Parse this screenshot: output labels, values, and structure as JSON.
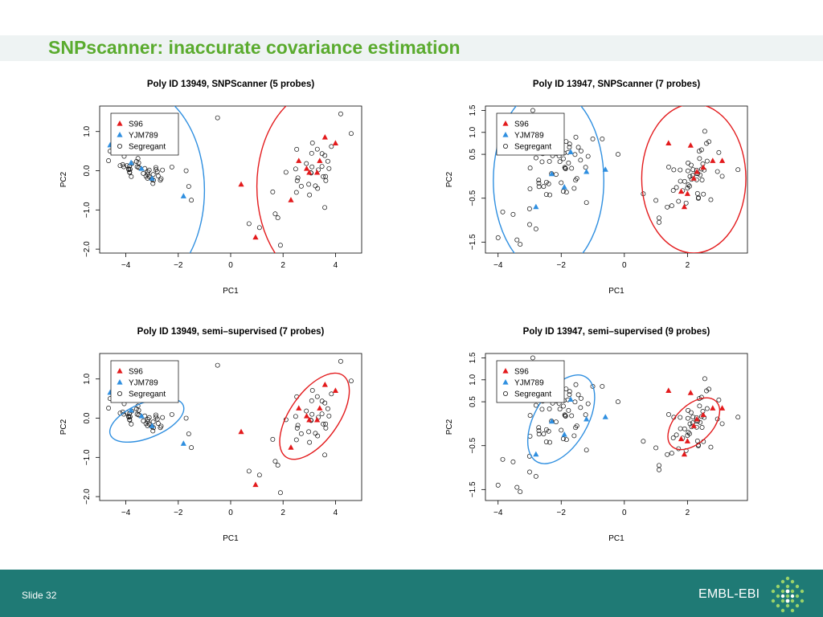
{
  "slide": {
    "title": "SNPscanner: inaccurate covariance estimation",
    "footer_slide": "Slide 32",
    "footer_brand": "EMBL-EBI"
  },
  "colors": {
    "accent_title": "#5aab2e",
    "footer": "#1f7a75",
    "s96": "#e31a1c",
    "yjm789": "#2f8fe0",
    "ellipse_s96": "#e31a1c",
    "ellipse_yjm789": "#2f8fe0"
  },
  "chart_data": [
    {
      "type": "scatter",
      "title": "Poly ID 13949, SNPScanner (5 probes)",
      "xlabel": "PC1",
      "ylabel": "PC2",
      "xlim": [
        -5,
        5
      ],
      "ylim": [
        -2.1,
        1.65
      ],
      "xticks": [
        -4,
        -2,
        0,
        2,
        4
      ],
      "yticks": [
        -2.0,
        -1.0,
        0.0,
        1.0
      ],
      "xtick_labels": [
        "−4",
        "−2",
        "0",
        "2",
        "4"
      ],
      "ytick_labels": [
        "−2.0",
        "−1.0",
        "0.0",
        "1.0"
      ],
      "legend": {
        "position": "top-left",
        "entries": [
          "S96",
          "YJM789",
          "Segregant"
        ]
      },
      "clusters": [
        {
          "series": "YJM789",
          "cx": -3.4,
          "cy": 0.05,
          "n": 40,
          "sx": 0.5,
          "sy": 0.22,
          "rho": -0.6,
          "seed": 11
        },
        {
          "series": "S96",
          "cx": 3.2,
          "cy": 0.1,
          "n": 30,
          "sx": 0.6,
          "sy": 0.5,
          "rho": 0.6,
          "seed": 12
        }
      ],
      "points": [
        {
          "series": "S96",
          "x": 0.4,
          "y": -0.35
        },
        {
          "series": "S96",
          "x": 0.95,
          "y": -1.7
        },
        {
          "series": "S96",
          "x": 2.3,
          "y": -0.75
        },
        {
          "series": "S96",
          "x": 2.6,
          "y": 0.25
        },
        {
          "series": "S96",
          "x": 2.9,
          "y": 0.05
        },
        {
          "series": "S96",
          "x": 3.0,
          "y": -0.05
        },
        {
          "series": "S96",
          "x": 3.4,
          "y": 0.25
        },
        {
          "series": "S96",
          "x": 3.6,
          "y": 0.85
        },
        {
          "series": "S96",
          "x": 3.3,
          "y": -0.05
        },
        {
          "series": "S96",
          "x": 4.0,
          "y": 0.7
        },
        {
          "series": "YJM789",
          "x": -4.6,
          "y": 0.65
        },
        {
          "series": "YJM789",
          "x": -3.8,
          "y": 0.2
        },
        {
          "series": "YJM789",
          "x": -3.4,
          "y": 0.05
        },
        {
          "series": "YJM789",
          "x": -3.0,
          "y": -0.2
        },
        {
          "series": "YJM789",
          "x": -1.8,
          "y": -0.65
        },
        {
          "series": "Segregant",
          "x": -4.6,
          "y": 0.5
        },
        {
          "series": "Segregant",
          "x": -0.5,
          "y": 1.35
        },
        {
          "series": "Segregant",
          "x": 0.7,
          "y": -1.35
        },
        {
          "series": "Segregant",
          "x": 1.1,
          "y": -1.45
        },
        {
          "series": "Segregant",
          "x": 1.9,
          "y": -1.9
        },
        {
          "series": "Segregant",
          "x": 1.7,
          "y": -1.1
        },
        {
          "series": "Segregant",
          "x": 1.8,
          "y": -1.2
        },
        {
          "series": "Segregant",
          "x": 4.2,
          "y": 1.45
        },
        {
          "series": "Segregant",
          "x": 4.6,
          "y": 0.95
        },
        {
          "series": "Segregant",
          "x": -1.5,
          "y": -0.75
        },
        {
          "series": "Segregant",
          "x": -1.6,
          "y": -0.4
        },
        {
          "series": "Segregant",
          "x": -1.7,
          "y": 0.0
        }
      ],
      "ellipses": [
        {
          "series": "YJM789",
          "cx": -3.6,
          "cy": -0.5,
          "rx": 2.6,
          "ry": 2.6,
          "angle": 0
        },
        {
          "series": "S96",
          "cx": 3.6,
          "cy": -0.4,
          "rx": 2.6,
          "ry": 2.5,
          "angle": 0
        }
      ]
    },
    {
      "type": "scatter",
      "title": "Poly ID 13947, SNPScanner (7 probes)",
      "xlabel": "PC1",
      "ylabel": "PC2",
      "xlim": [
        -4.4,
        3.9
      ],
      "ylim": [
        -1.75,
        1.6
      ],
      "xticks": [
        -4,
        -2,
        0,
        2
      ],
      "yticks": [
        -1.5,
        -0.5,
        0.5,
        1.0,
        1.5
      ],
      "xtick_labels": [
        "−4",
        "−2",
        "0",
        "2"
      ],
      "ytick_labels": [
        "−1.5",
        "−0.5",
        "0.5",
        "1.0",
        "1.5"
      ],
      "legend": {
        "position": "top-left",
        "entries": [
          "S96",
          "YJM789",
          "Segregant"
        ]
      },
      "clusters": [
        {
          "series": "YJM789",
          "cx": -2.0,
          "cy": 0.15,
          "n": 50,
          "sx": 0.6,
          "sy": 0.45,
          "rho": 0.6,
          "seed": 21
        },
        {
          "series": "S96",
          "cx": 2.1,
          "cy": -0.05,
          "n": 45,
          "sx": 0.4,
          "sy": 0.4,
          "rho": 0.6,
          "seed": 22
        }
      ],
      "points": [
        {
          "series": "S96",
          "x": 1.4,
          "y": 0.75
        },
        {
          "series": "S96",
          "x": 2.1,
          "y": 0.7
        },
        {
          "series": "S96",
          "x": 1.8,
          "y": -0.35
        },
        {
          "series": "S96",
          "x": 2.0,
          "y": -0.4
        },
        {
          "series": "S96",
          "x": 1.9,
          "y": -0.7
        },
        {
          "series": "S96",
          "x": 2.3,
          "y": 0.1
        },
        {
          "series": "S96",
          "x": 2.8,
          "y": 0.35
        },
        {
          "series": "S96",
          "x": 3.1,
          "y": 0.35
        },
        {
          "series": "S96",
          "x": 2.5,
          "y": 0.2
        },
        {
          "series": "S96",
          "x": 2.2,
          "y": -0.05
        },
        {
          "series": "YJM789",
          "x": -2.8,
          "y": -0.7
        },
        {
          "series": "YJM789",
          "x": -2.3,
          "y": 0.05
        },
        {
          "series": "YJM789",
          "x": -1.9,
          "y": -0.25
        },
        {
          "series": "YJM789",
          "x": -1.7,
          "y": 0.55
        },
        {
          "series": "YJM789",
          "x": -0.6,
          "y": 0.15
        },
        {
          "series": "YJM789",
          "x": -1.2,
          "y": 0.1
        },
        {
          "series": "Segregant",
          "x": -4.0,
          "y": -1.4
        },
        {
          "series": "Segregant",
          "x": -3.3,
          "y": -1.55
        },
        {
          "series": "Segregant",
          "x": -3.4,
          "y": -1.45
        },
        {
          "series": "Segregant",
          "x": -2.9,
          "y": 1.5
        },
        {
          "series": "Segregant",
          "x": -2.8,
          "y": -1.2
        },
        {
          "series": "Segregant",
          "x": -3.0,
          "y": -1.1
        },
        {
          "series": "Segregant",
          "x": -1.0,
          "y": 0.85
        },
        {
          "series": "Segregant",
          "x": -0.7,
          "y": 0.85
        },
        {
          "series": "Segregant",
          "x": -0.2,
          "y": 0.5
        },
        {
          "series": "Segregant",
          "x": 0.6,
          "y": -0.4
        },
        {
          "series": "Segregant",
          "x": 1.1,
          "y": -0.95
        },
        {
          "series": "Segregant",
          "x": 1.1,
          "y": -1.05
        },
        {
          "series": "Segregant",
          "x": 1.0,
          "y": -0.55
        },
        {
          "series": "Segregant",
          "x": 3.6,
          "y": 0.15
        },
        {
          "series": "Segregant",
          "x": 3.1,
          "y": 0.0
        },
        {
          "series": "Segregant",
          "x": -1.2,
          "y": -0.6
        }
      ],
      "ellipses": [
        {
          "series": "YJM789",
          "cx": -2.4,
          "cy": -0.1,
          "rx": 1.75,
          "ry": 2.1,
          "angle": 0
        },
        {
          "series": "S96",
          "cx": 2.2,
          "cy": -0.05,
          "rx": 1.65,
          "ry": 1.7,
          "angle": 0
        }
      ]
    },
    {
      "type": "scatter",
      "title": "Poly ID 13949, semi–supervised (7 probes)",
      "xlabel": "PC1",
      "ylabel": "PC2",
      "xlim": [
        -5,
        5
      ],
      "ylim": [
        -2.1,
        1.65
      ],
      "xticks": [
        -4,
        -2,
        0,
        2,
        4
      ],
      "yticks": [
        -2.0,
        -1.0,
        0.0,
        1.0
      ],
      "xtick_labels": [
        "−4",
        "−2",
        "0",
        "2",
        "4"
      ],
      "ytick_labels": [
        "−2.0",
        "−1.0",
        "0.0",
        "1.0"
      ],
      "legend": {
        "position": "top-left",
        "entries": [
          "S96",
          "YJM789",
          "Segregant"
        ]
      },
      "clusters": [
        {
          "series": "YJM789",
          "cx": -3.4,
          "cy": 0.05,
          "n": 40,
          "sx": 0.5,
          "sy": 0.22,
          "rho": -0.6,
          "seed": 11
        },
        {
          "series": "S96",
          "cx": 3.2,
          "cy": 0.1,
          "n": 30,
          "sx": 0.6,
          "sy": 0.5,
          "rho": 0.6,
          "seed": 12
        }
      ],
      "points": [
        {
          "series": "S96",
          "x": 0.4,
          "y": -0.35
        },
        {
          "series": "S96",
          "x": 0.95,
          "y": -1.7
        },
        {
          "series": "S96",
          "x": 2.3,
          "y": -0.75
        },
        {
          "series": "S96",
          "x": 2.6,
          "y": 0.25
        },
        {
          "series": "S96",
          "x": 2.9,
          "y": 0.05
        },
        {
          "series": "S96",
          "x": 3.0,
          "y": -0.05
        },
        {
          "series": "S96",
          "x": 3.4,
          "y": 0.25
        },
        {
          "series": "S96",
          "x": 3.6,
          "y": 0.85
        },
        {
          "series": "S96",
          "x": 3.3,
          "y": -0.05
        },
        {
          "series": "S96",
          "x": 4.0,
          "y": 0.7
        },
        {
          "series": "YJM789",
          "x": -4.6,
          "y": 0.65
        },
        {
          "series": "YJM789",
          "x": -3.8,
          "y": 0.2
        },
        {
          "series": "YJM789",
          "x": -3.4,
          "y": 0.05
        },
        {
          "series": "YJM789",
          "x": -3.0,
          "y": -0.2
        },
        {
          "series": "YJM789",
          "x": -1.8,
          "y": -0.65
        },
        {
          "series": "Segregant",
          "x": -4.6,
          "y": 0.5
        },
        {
          "series": "Segregant",
          "x": -0.5,
          "y": 1.35
        },
        {
          "series": "Segregant",
          "x": 0.7,
          "y": -1.35
        },
        {
          "series": "Segregant",
          "x": 1.1,
          "y": -1.45
        },
        {
          "series": "Segregant",
          "x": 1.9,
          "y": -1.9
        },
        {
          "series": "Segregant",
          "x": 1.7,
          "y": -1.1
        },
        {
          "series": "Segregant",
          "x": 1.8,
          "y": -1.2
        },
        {
          "series": "Segregant",
          "x": 4.2,
          "y": 1.45
        },
        {
          "series": "Segregant",
          "x": 4.6,
          "y": 0.95
        },
        {
          "series": "Segregant",
          "x": -1.5,
          "y": -0.75
        },
        {
          "series": "Segregant",
          "x": -1.6,
          "y": -0.4
        },
        {
          "series": "Segregant",
          "x": -1.7,
          "y": 0.0
        }
      ],
      "ellipses": [
        {
          "series": "YJM789",
          "cx": -3.2,
          "cy": -0.05,
          "rx": 1.5,
          "ry": 0.45,
          "angle": -22
        },
        {
          "series": "S96",
          "cx": 3.2,
          "cy": 0.05,
          "rx": 1.9,
          "ry": 0.62,
          "angle": -55
        }
      ]
    },
    {
      "type": "scatter",
      "title": "Poly ID 13947, semi–supervised (9 probes)",
      "xlabel": "PC1",
      "ylabel": "PC2",
      "xlim": [
        -4.4,
        3.9
      ],
      "ylim": [
        -1.75,
        1.6
      ],
      "xticks": [
        -4,
        -2,
        0,
        2
      ],
      "yticks": [
        -1.5,
        -0.5,
        0.5,
        1.0,
        1.5
      ],
      "xtick_labels": [
        "−4",
        "−2",
        "0",
        "2"
      ],
      "ytick_labels": [
        "−1.5",
        "−0.5",
        "0.5",
        "1.0",
        "1.5"
      ],
      "legend": {
        "position": "top-left",
        "entries": [
          "S96",
          "YJM789",
          "Segregant"
        ]
      },
      "clusters": [
        {
          "series": "YJM789",
          "cx": -2.0,
          "cy": 0.15,
          "n": 50,
          "sx": 0.6,
          "sy": 0.45,
          "rho": 0.6,
          "seed": 21
        },
        {
          "series": "S96",
          "cx": 2.1,
          "cy": -0.05,
          "n": 45,
          "sx": 0.4,
          "sy": 0.4,
          "rho": 0.6,
          "seed": 22
        }
      ],
      "points": [
        {
          "series": "S96",
          "x": 1.4,
          "y": 0.75
        },
        {
          "series": "S96",
          "x": 2.1,
          "y": 0.7
        },
        {
          "series": "S96",
          "x": 1.8,
          "y": -0.35
        },
        {
          "series": "S96",
          "x": 2.0,
          "y": -0.4
        },
        {
          "series": "S96",
          "x": 1.9,
          "y": -0.7
        },
        {
          "series": "S96",
          "x": 2.3,
          "y": 0.1
        },
        {
          "series": "S96",
          "x": 2.8,
          "y": 0.35
        },
        {
          "series": "S96",
          "x": 3.1,
          "y": 0.35
        },
        {
          "series": "S96",
          "x": 2.5,
          "y": 0.2
        },
        {
          "series": "S96",
          "x": 2.2,
          "y": -0.05
        },
        {
          "series": "YJM789",
          "x": -2.8,
          "y": -0.7
        },
        {
          "series": "YJM789",
          "x": -2.3,
          "y": 0.05
        },
        {
          "series": "YJM789",
          "x": -1.9,
          "y": -0.25
        },
        {
          "series": "YJM789",
          "x": -1.7,
          "y": 0.55
        },
        {
          "series": "YJM789",
          "x": -0.6,
          "y": 0.15
        },
        {
          "series": "YJM789",
          "x": -1.2,
          "y": 0.1
        },
        {
          "series": "Segregant",
          "x": -4.0,
          "y": -1.4
        },
        {
          "series": "Segregant",
          "x": -3.3,
          "y": -1.55
        },
        {
          "series": "Segregant",
          "x": -3.4,
          "y": -1.45
        },
        {
          "series": "Segregant",
          "x": -2.9,
          "y": 1.5
        },
        {
          "series": "Segregant",
          "x": -2.8,
          "y": -1.2
        },
        {
          "series": "Segregant",
          "x": -3.0,
          "y": -1.1
        },
        {
          "series": "Segregant",
          "x": -1.0,
          "y": 0.85
        },
        {
          "series": "Segregant",
          "x": -0.7,
          "y": 0.85
        },
        {
          "series": "Segregant",
          "x": -0.2,
          "y": 0.5
        },
        {
          "series": "Segregant",
          "x": 0.6,
          "y": -0.4
        },
        {
          "series": "Segregant",
          "x": 1.1,
          "y": -0.95
        },
        {
          "series": "Segregant",
          "x": 1.1,
          "y": -1.05
        },
        {
          "series": "Segregant",
          "x": 1.0,
          "y": -0.55
        },
        {
          "series": "Segregant",
          "x": 3.6,
          "y": 0.15
        },
        {
          "series": "Segregant",
          "x": 3.1,
          "y": 0.0
        },
        {
          "series": "Segregant",
          "x": -1.2,
          "y": -0.6
        }
      ],
      "ellipses": [
        {
          "series": "YJM789",
          "cx": -2.0,
          "cy": 0.1,
          "rx": 1.55,
          "ry": 0.6,
          "angle": -60
        },
        {
          "series": "S96",
          "cx": 2.2,
          "cy": 0.0,
          "rx": 1.0,
          "ry": 0.42,
          "angle": -45
        }
      ]
    }
  ]
}
